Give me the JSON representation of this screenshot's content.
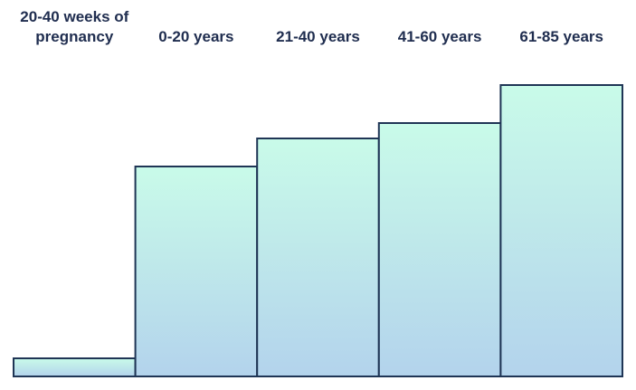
{
  "chart_data": {
    "type": "bar",
    "categories": [
      "20-40 weeks of pregnancy",
      "0-20 years",
      "21-40 years",
      "41-60 years",
      "61-85 years"
    ],
    "values": [
      20,
      232,
      263,
      280,
      322
    ],
    "ylim": [
      0,
      330
    ]
  }
}
